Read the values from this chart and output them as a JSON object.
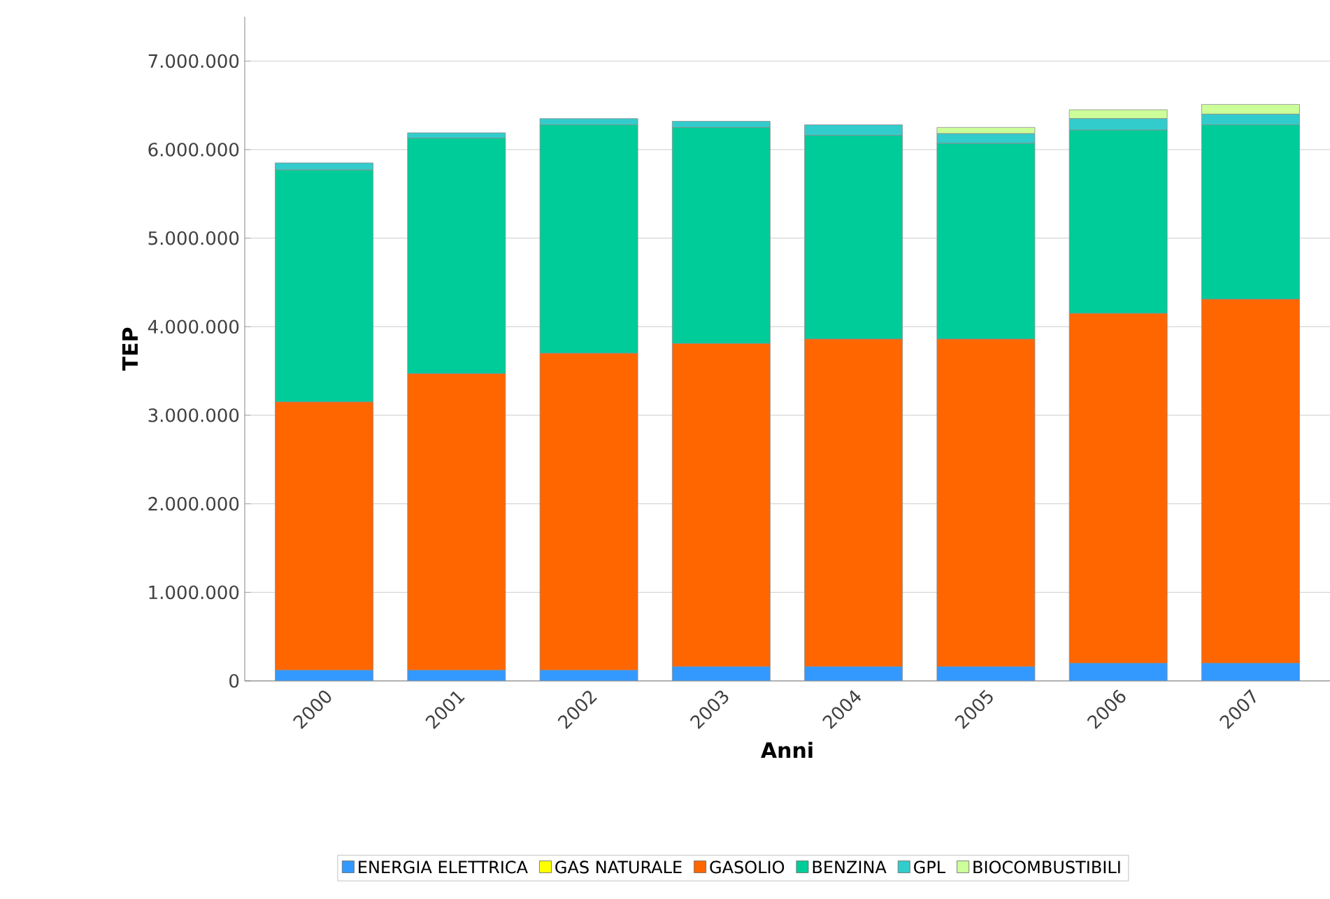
{
  "chart_data": {
    "type": "bar",
    "stacked": true,
    "xlabel": "Anni",
    "ylabel": "TEP",
    "categories": [
      "2000",
      "2001",
      "2002",
      "2003",
      "2004",
      "2005",
      "2006",
      "2007"
    ],
    "series": [
      {
        "name": "ENERGIA ELETTRICA",
        "color": "#3399ff",
        "values": [
          120000,
          120000,
          120000,
          160000,
          160000,
          160000,
          200000,
          200000
        ]
      },
      {
        "name": "GAS NATURALE",
        "color": "#ffff00",
        "values": [
          0,
          0,
          0,
          0,
          0,
          0,
          0,
          0
        ]
      },
      {
        "name": "GASOLIO",
        "color": "#ff6600",
        "values": [
          3030000,
          3350000,
          3580000,
          3650000,
          3700000,
          3700000,
          3950000,
          4110000
        ]
      },
      {
        "name": "BENZINA",
        "color": "#00cc99",
        "values": [
          2620000,
          2660000,
          2580000,
          2440000,
          2300000,
          2210000,
          2070000,
          1970000
        ]
      },
      {
        "name": "GPL",
        "color": "#33cccc",
        "values": [
          80000,
          60000,
          70000,
          70000,
          120000,
          110000,
          130000,
          120000
        ]
      },
      {
        "name": "BIOCOMBUSTIBILI",
        "color": "#ccff99",
        "values": [
          0,
          0,
          0,
          0,
          0,
          70000,
          100000,
          110000
        ]
      }
    ],
    "ylim": [
      0,
      7500000
    ],
    "yticks": [
      {
        "value": 0,
        "label": "0"
      },
      {
        "value": 1000000,
        "label": "1.000.000"
      },
      {
        "value": 2000000,
        "label": "2.000.000"
      },
      {
        "value": 3000000,
        "label": "3.000.000"
      },
      {
        "value": 4000000,
        "label": "4.000.000"
      },
      {
        "value": 5000000,
        "label": "5.000.000"
      },
      {
        "value": 6000000,
        "label": "6.000.000"
      },
      {
        "value": 7000000,
        "label": "7.000.000"
      }
    ],
    "grid": "y",
    "legend": "bottom"
  }
}
